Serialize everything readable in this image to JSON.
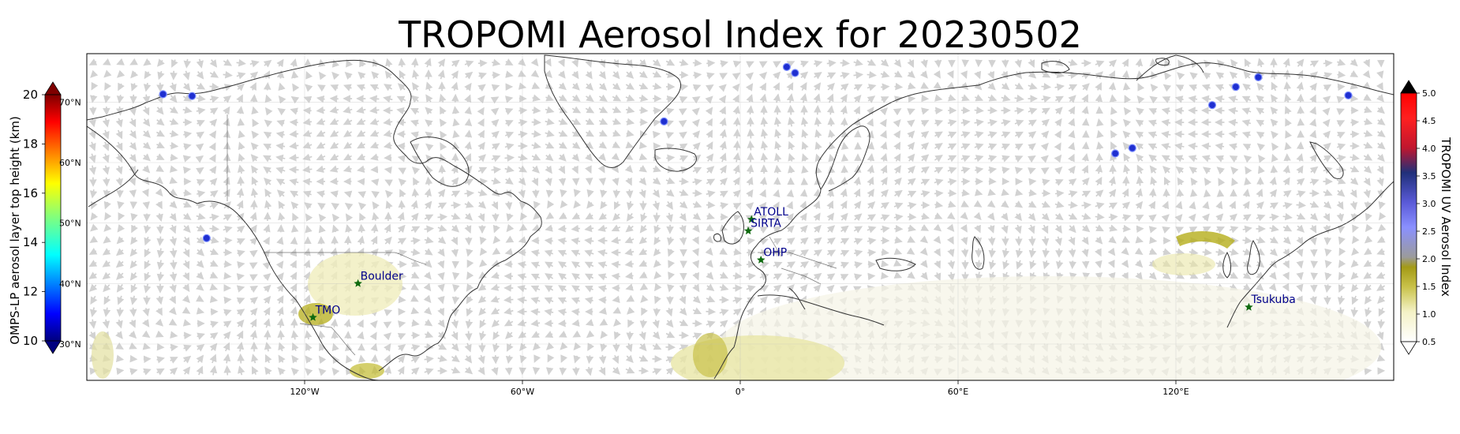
{
  "title": "TROPOMI Aerosol Index for 20230502",
  "colors": {
    "coast": "#333333",
    "wind_arrow": "#bdbdbd",
    "omps_marker": "#1f2fd0",
    "site_marker": "#0f6a0f",
    "site_label": "#00008b",
    "aerosol_low": "#e8e6a8",
    "aerosol_mid": "#b5ae1a"
  },
  "x_axis": {
    "ticks": [
      {
        "lon": -120,
        "label": "120°W"
      },
      {
        "lon": -60,
        "label": "60°W"
      },
      {
        "lon": 0,
        "label": "0°"
      },
      {
        "lon": 60,
        "label": "60°E"
      },
      {
        "lon": 120,
        "label": "120°E"
      }
    ],
    "lon_range": [
      -180,
      180
    ]
  },
  "lat_axis": {
    "range": [
      24,
      78
    ],
    "ticks": [
      {
        "lat": 70,
        "label": "70°N"
      },
      {
        "lat": 60,
        "label": "60°N"
      },
      {
        "lat": 50,
        "label": "50°N"
      },
      {
        "lat": 40,
        "label": "40°N"
      },
      {
        "lat": 30,
        "label": "30°N"
      }
    ]
  },
  "left_colorbar": {
    "label": "OMPS-LP aerosol layer top height (km)",
    "range": [
      10,
      20
    ],
    "ticks": [
      "20",
      "18",
      "16",
      "14",
      "12",
      "10"
    ],
    "colormap": "jet"
  },
  "right_colorbar": {
    "label": "TROPOMI UV Aerosol Index",
    "range": [
      0.5,
      5.0
    ],
    "ticks": [
      "5.0",
      "4.5",
      "4.0",
      "3.5",
      "3.0",
      "2.5",
      "2.0",
      "1.5",
      "1.0",
      "0.5"
    ]
  },
  "sites": [
    {
      "name": "TMO",
      "lon": -117.7,
      "lat": 34.4
    },
    {
      "name": "Boulder",
      "lon": -105.3,
      "lat": 40.0
    },
    {
      "name": "ATOLL",
      "lon": 3.1,
      "lat": 50.6
    },
    {
      "name": "SIRTA",
      "lon": 2.2,
      "lat": 48.7
    },
    {
      "name": "OHP",
      "lon": 5.7,
      "lat": 43.9
    },
    {
      "name": "Tsukuba",
      "lon": 140.1,
      "lat": 36.1
    }
  ],
  "omps_points": [
    {
      "lon": -159,
      "lat": 71.3
    },
    {
      "lon": -151,
      "lat": 71.0
    },
    {
      "lon": -147,
      "lat": 47.5
    },
    {
      "lon": 12.8,
      "lat": 75.8
    },
    {
      "lon": 15.1,
      "lat": 74.8
    },
    {
      "lon": -21,
      "lat": 66.8
    },
    {
      "lon": 103.3,
      "lat": 61.5
    },
    {
      "lon": 108,
      "lat": 62.4
    },
    {
      "lon": 130,
      "lat": 69.5
    },
    {
      "lon": 136.5,
      "lat": 72.5
    },
    {
      "lon": 142.7,
      "lat": 74.1
    },
    {
      "lon": 167.5,
      "lat": 71.1
    }
  ]
}
